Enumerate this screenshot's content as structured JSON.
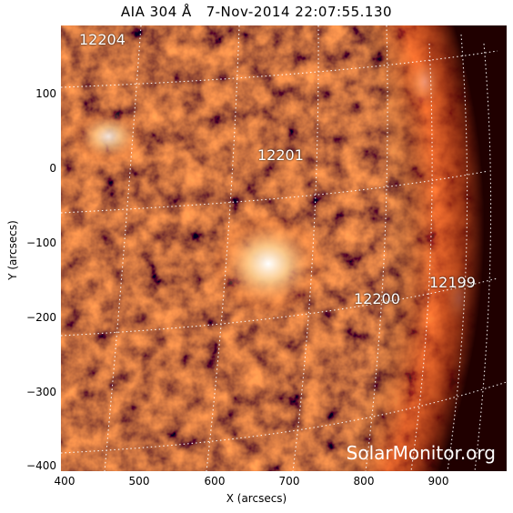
{
  "header": {
    "title": "AIA 304 Å   7-Nov-2014 22:07:55.130"
  },
  "axes": {
    "xlabel": "X (arcsecs)",
    "ylabel": "Y (arcsecs)",
    "x_ticks": [
      "400",
      "500",
      "600",
      "700",
      "800",
      "900"
    ],
    "y_ticks": [
      "100",
      "0",
      "−100",
      "−200",
      "−300",
      "−400"
    ]
  },
  "regions": [
    "12204",
    "12201",
    "12200",
    "12199"
  ],
  "watermark": "SolarMonitor.org",
  "colors": {
    "sun_dark": "#5c0c00",
    "sun_mid": "#c83a08",
    "sun_bright": "#ffb060"
  }
}
